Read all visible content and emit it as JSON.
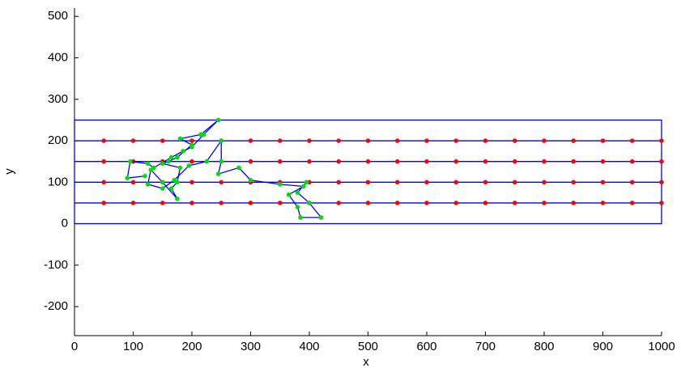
{
  "chart_data": {
    "type": "line",
    "x_label": "x",
    "y_label": "y",
    "xlim": [
      0,
      1000
    ],
    "ylim": [
      -270,
      520
    ],
    "xticks": [
      0,
      100,
      200,
      300,
      400,
      500,
      600,
      700,
      800,
      900,
      1000
    ],
    "yticks": [
      -200,
      -100,
      0,
      100,
      200,
      300,
      400,
      500
    ],
    "series": [
      {
        "color": "#0000ff",
        "line": true,
        "x": [
          0,
          1000,
          1000,
          0,
          0
        ],
        "values": [
          0,
          0,
          250,
          250,
          0
        ]
      },
      {
        "color": "#0000ff",
        "line": true,
        "x": [
          0,
          1000
        ],
        "values": [
          50,
          50
        ]
      },
      {
        "color": "#0000ff",
        "line": true,
        "x": [
          0,
          1000
        ],
        "values": [
          100,
          100
        ]
      },
      {
        "color": "#0000ff",
        "line": true,
        "x": [
          0,
          1000
        ],
        "values": [
          150,
          150
        ]
      },
      {
        "color": "#0000ff",
        "line": true,
        "x": [
          0,
          1000
        ],
        "values": [
          200,
          200
        ]
      },
      {
        "color": "#ff0000",
        "marker": true,
        "x": [
          50,
          100,
          150,
          200,
          250,
          300,
          350,
          400,
          450,
          500,
          550,
          600,
          650,
          700,
          750,
          800,
          850,
          900,
          950,
          1000
        ],
        "values": [
          50,
          50,
          50,
          50,
          50,
          50,
          50,
          50,
          50,
          50,
          50,
          50,
          50,
          50,
          50,
          50,
          50,
          50,
          50,
          50
        ]
      },
      {
        "color": "#ff0000",
        "marker": true,
        "x": [
          50,
          100,
          150,
          200,
          250,
          300,
          350,
          400,
          450,
          500,
          550,
          600,
          650,
          700,
          750,
          800,
          850,
          900,
          950,
          1000
        ],
        "values": [
          100,
          100,
          100,
          100,
          100,
          100,
          100,
          100,
          100,
          100,
          100,
          100,
          100,
          100,
          100,
          100,
          100,
          100,
          100,
          100
        ]
      },
      {
        "color": "#ff0000",
        "marker": true,
        "x": [
          50,
          100,
          150,
          200,
          250,
          300,
          350,
          400,
          450,
          500,
          550,
          600,
          650,
          700,
          750,
          800,
          850,
          900,
          950,
          1000
        ],
        "values": [
          150,
          150,
          150,
          150,
          150,
          150,
          150,
          150,
          150,
          150,
          150,
          150,
          150,
          150,
          150,
          150,
          150,
          150,
          150,
          150
        ]
      },
      {
        "color": "#ff0000",
        "marker": true,
        "x": [
          50,
          100,
          150,
          200,
          250,
          300,
          350,
          400,
          450,
          500,
          550,
          600,
          650,
          700,
          750,
          800,
          850,
          900,
          950,
          1000
        ],
        "values": [
          200,
          200,
          200,
          200,
          200,
          200,
          200,
          200,
          200,
          200,
          200,
          200,
          200,
          200,
          200,
          200,
          200,
          200,
          200,
          200
        ]
      },
      {
        "color": "#0000ff",
        "marker_color": "#00e000",
        "line": true,
        "marker": true,
        "x": [
          120,
          90,
          95,
          125,
          135,
          165,
          185,
          200,
          220,
          245,
          215,
          180,
          200,
          175,
          160,
          150,
          180,
          175,
          165,
          175,
          150,
          130,
          125,
          150,
          170,
          195,
          225,
          250,
          250,
          245,
          280,
          300,
          350,
          390,
          365,
          380,
          385,
          420,
          400,
          380,
          395
        ],
        "values": [
          115,
          110,
          150,
          145,
          135,
          160,
          175,
          185,
          215,
          250,
          215,
          205,
          190,
          160,
          150,
          145,
          135,
          100,
          85,
          60,
          100,
          130,
          95,
          85,
          105,
          140,
          150,
          200,
          150,
          120,
          135,
          105,
          95,
          90,
          70,
          40,
          15,
          15,
          50,
          75,
          100
        ]
      }
    ]
  }
}
